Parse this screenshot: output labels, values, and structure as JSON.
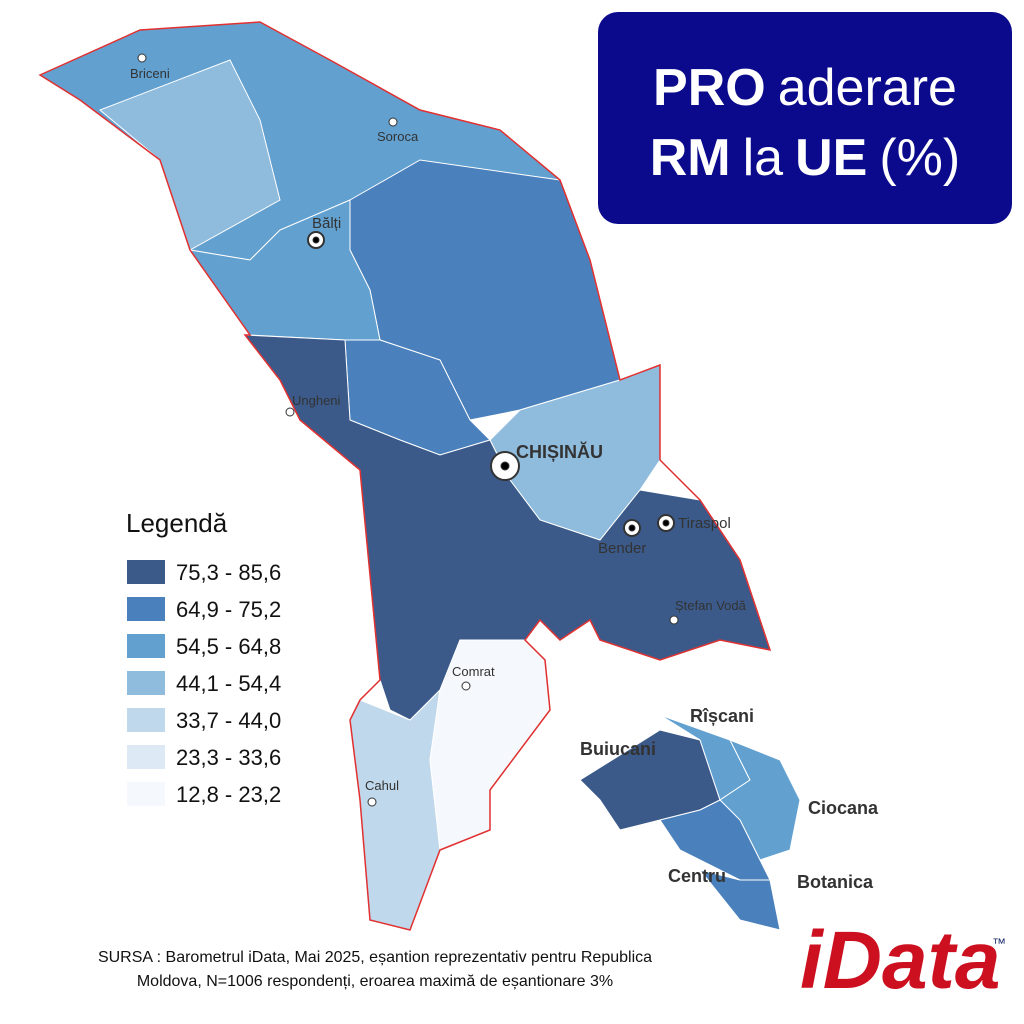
{
  "title": {
    "line1": [
      {
        "text": "PRO",
        "bold": true
      },
      {
        "text": "aderare",
        "bold": false
      }
    ],
    "line2": [
      {
        "text": "RM",
        "bold": true
      },
      {
        "text": "la",
        "bold": false
      },
      {
        "text": "UE",
        "bold": true
      },
      {
        "text": "(%)",
        "bold": false
      }
    ]
  },
  "cities": [
    "Briceni",
    "Soroca",
    "Bălți",
    "Ungheni",
    "CHIȘINĂU",
    "Tiraspol",
    "Bender",
    "Ștefan Vodă",
    "Comrat",
    "Cahul"
  ],
  "legend": {
    "title": "Legendă",
    "items": [
      {
        "label": "75,3 - 85,6",
        "color": "#3b5a8a"
      },
      {
        "label": "64,9 - 75,2",
        "color": "#4a80bb"
      },
      {
        "label": "54,5 - 64,8",
        "color": "#62a0d0"
      },
      {
        "label": "44,1 - 54,4",
        "color": "#8fbcdd"
      },
      {
        "label": "33,7 - 44,0",
        "color": "#c0d8eb"
      },
      {
        "label": "23,3 - 33,6",
        "color": "#dde9f5"
      },
      {
        "label": "12,8 - 23,2",
        "color": "#f5f8fc"
      }
    ]
  },
  "sectors": [
    "Buiucani",
    "Rîșcani",
    "Ciocana",
    "Centru",
    "Botanica"
  ],
  "source": [
    "SURSA : Barometrul iData, Mai 2025, eșantion reprezentativ pentru Republica",
    "Moldova, N=1006 respondenți, eroarea maximă de eșantionare 3%"
  ],
  "logo": {
    "text": "iData",
    "mark": "™"
  }
}
